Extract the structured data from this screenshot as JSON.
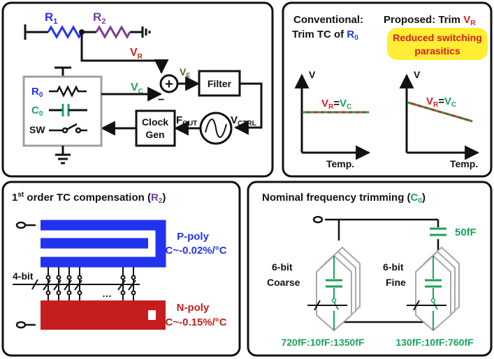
{
  "colors": {
    "blue": "#2233ee",
    "purple": "#7a3d9a",
    "red": "#d21f1f",
    "green": "#1aa35a",
    "panel_border": "#111111",
    "yellow": "#ffee33"
  },
  "panel_a": {
    "r1": "R",
    "r1_sub": "1",
    "r2": "R",
    "r2_sub": "2",
    "vr": "V",
    "vr_sub": "R",
    "vc": "V",
    "vc_sub": "C",
    "ve": "V",
    "ve_sub": "E",
    "plus": "+",
    "minus": "−",
    "filter": "Filter",
    "clock_line1": "Clock",
    "clock_line2": "Gen",
    "fout": "F",
    "fout_sub": "OUT",
    "vctrl": "V",
    "vctrl_sub": "CTRL",
    "r0": "R",
    "r0_sub": "0",
    "c0": "C",
    "c0_sub": "0",
    "sw": "SW"
  },
  "panel_b": {
    "conv_line1": "Conventional:",
    "conv_line2": "Trim TC of ",
    "conv_r": "R",
    "conv_r_sub": "0",
    "prop_line1": "Proposed: Trim ",
    "prop_v": "V",
    "prop_v_sub": "R",
    "badge_line1": "Reduced switching",
    "badge_line2": "parasitics",
    "v_axis": "V",
    "temp_axis": "Temp.",
    "eq_vr": "V",
    "eq_vr_sub": "R",
    "eq_sign": "=",
    "eq_vc": "V",
    "eq_vc_sub": "C"
  },
  "panel_c": {
    "title_pre": "1",
    "title_sup": "st",
    "title_main": " order TC compensation (",
    "title_r": "R",
    "title_r_sub": "2",
    "title_close": ")",
    "ppoly": "P-poly",
    "ppoly_tc": "TC~-0.02%/°C",
    "npoly": "N-poly",
    "npoly_tc": "TC~-0.15%/°C",
    "bits": "4-bit",
    "dots": "…"
  },
  "panel_d": {
    "title_main": "Nominal frequency trimming (",
    "title_c": "C",
    "title_c_sub": "0",
    "title_close": ")",
    "cap": "50fF",
    "coarse_line1": "6-bit",
    "coarse_line2": "Coarse",
    "fine_line1": "6-bit",
    "fine_line2": "Fine",
    "coarse_range": "720fF:10fF:1350fF",
    "fine_range": "130fF:10fF:760fF"
  }
}
